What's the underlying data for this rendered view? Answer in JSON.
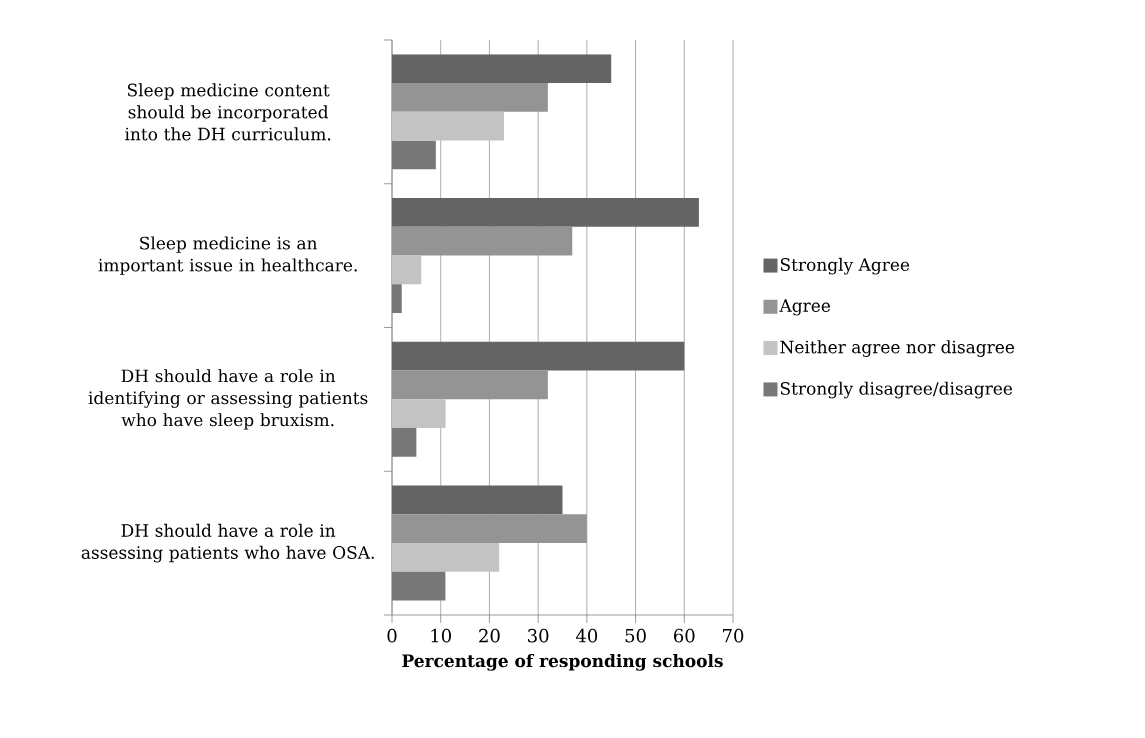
{
  "chart_data": {
    "type": "bar",
    "orientation": "horizontal",
    "xlabel": "Percentage of responding schools",
    "categories": [
      "Sleep medicine content should be incorporated into the DH curriculum.",
      "Sleep medicine is an important issue in healthcare.",
      "DH should have a role in identifying or assessing patients who have sleep bruxism.",
      "DH should have a role in assessing patients who have OSA."
    ],
    "series": [
      {
        "name": "Strongly Agree",
        "color": "#646464",
        "values": [
          45,
          63,
          60,
          35
        ]
      },
      {
        "name": "Agree",
        "color": "#949494",
        "values": [
          32,
          37,
          32,
          40
        ]
      },
      {
        "name": "Neither agree nor disagree",
        "color": "#c3c3c3",
        "values": [
          23,
          6,
          11,
          22
        ]
      },
      {
        "name": "Strongly disagree/disagree",
        "color": "#777777",
        "values": [
          9,
          2,
          5,
          11
        ]
      }
    ],
    "xlim": [
      0,
      70
    ],
    "xticks": [
      0,
      10,
      20,
      30,
      40,
      50,
      60,
      70
    ],
    "grid": "x",
    "legend": "right"
  }
}
